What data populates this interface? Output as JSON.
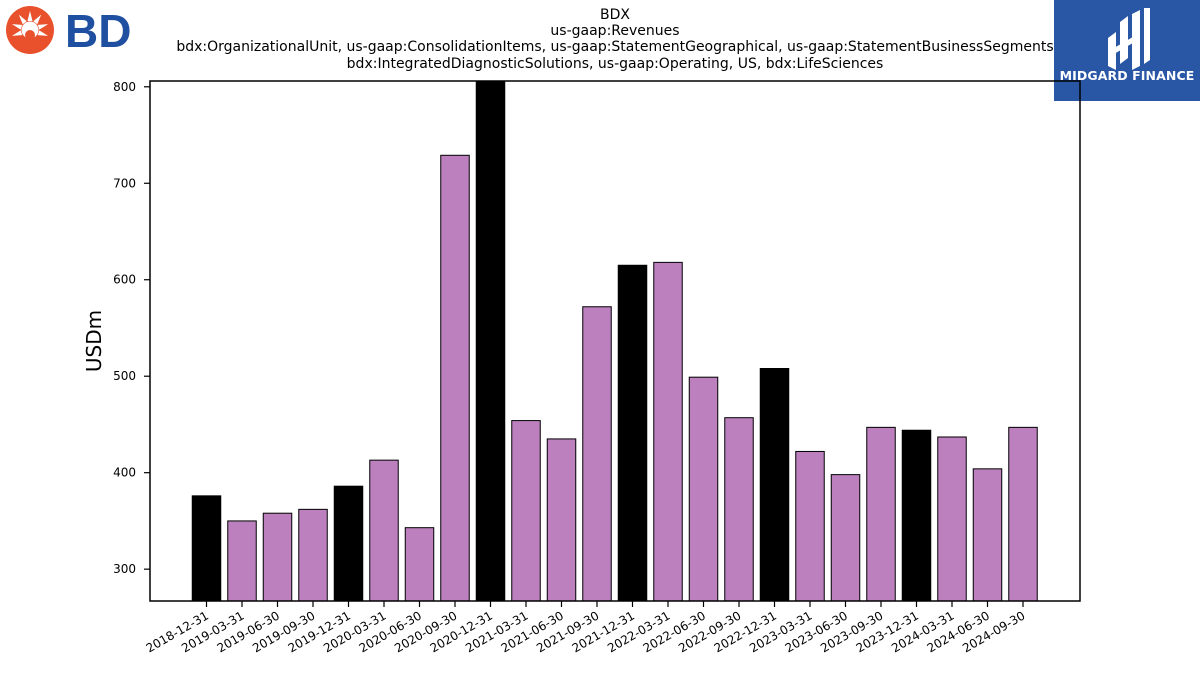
{
  "logos": {
    "left_brand": "BD",
    "right_brand": "MIDGARD FINANCE"
  },
  "chart_data": {
    "type": "bar",
    "title_lines": [
      "BDX",
      "us-gaap:Revenues",
      "bdx:OrganizationalUnit, us-gaap:ConsolidationItems, us-gaap:StatementGeographical, us-gaap:StatementBusinessSegments",
      "bdx:IntegratedDiagnosticSolutions, us-gaap:Operating, US, bdx:LifeSciences"
    ],
    "ylabel": "USDm",
    "xlabel": "",
    "ylim": [
      267,
      806
    ],
    "yticks": [
      300,
      400,
      500,
      600,
      700,
      800
    ],
    "categories": [
      "2018-12-31",
      "2019-03-31",
      "2019-06-30",
      "2019-09-30",
      "2019-12-31",
      "2020-03-31",
      "2020-06-30",
      "2020-09-30",
      "2020-12-31",
      "2021-03-31",
      "2021-06-30",
      "2021-09-30",
      "2021-12-31",
      "2022-03-31",
      "2022-06-30",
      "2022-09-30",
      "2022-12-31",
      "2023-03-31",
      "2023-06-30",
      "2023-09-30",
      "2023-12-31",
      "2024-03-31",
      "2024-06-30",
      "2024-09-30"
    ],
    "values": [
      376,
      350,
      358,
      362,
      386,
      413,
      343,
      729,
      806,
      454,
      435,
      572,
      615,
      618,
      499,
      457,
      508,
      422,
      398,
      447,
      444,
      437,
      404,
      447
    ],
    "colors": {
      "year_end": "#000000",
      "quarter": "#bb80bd",
      "edge": "#000000"
    },
    "grid": false,
    "legend": "none"
  }
}
